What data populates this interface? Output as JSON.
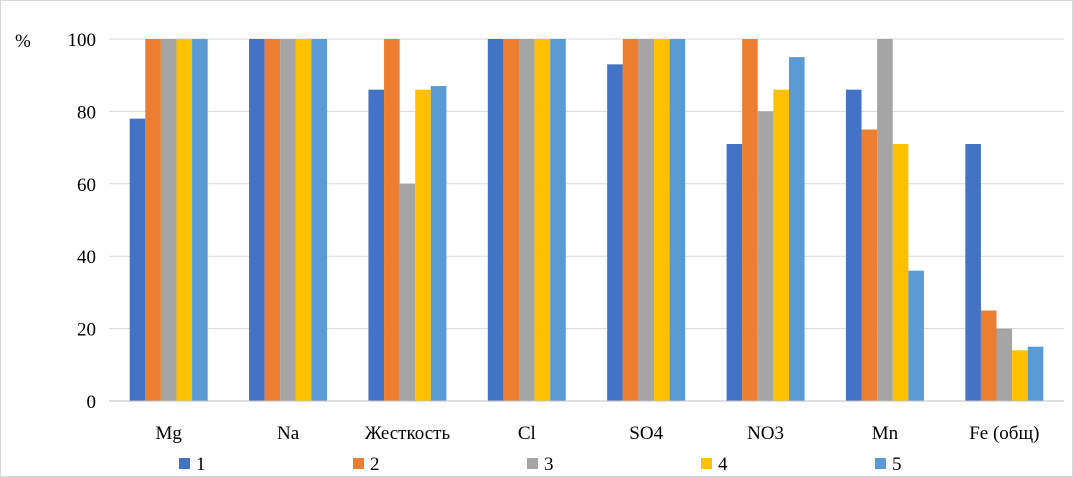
{
  "chart_data": {
    "type": "bar",
    "title": "",
    "ylabel": "%",
    "xlabel": "",
    "ylim": [
      0,
      100
    ],
    "yticks": [
      0,
      20,
      40,
      60,
      80,
      100
    ],
    "grid": true,
    "legend_position": "bottom",
    "categories": [
      "Mg",
      "Na",
      "Жесткость",
      "Cl",
      "SO4",
      "NO3",
      "Mn",
      "Fe (общ)"
    ],
    "series": [
      {
        "name": "1",
        "color": "#4472C4",
        "values": [
          78,
          100,
          86,
          100,
          93,
          71,
          86,
          71
        ]
      },
      {
        "name": "2",
        "color": "#ED7D31",
        "values": [
          100,
          100,
          100,
          100,
          100,
          100,
          75,
          25
        ]
      },
      {
        "name": "3",
        "color": "#A5A5A5",
        "values": [
          100,
          100,
          60,
          100,
          100,
          80,
          100,
          20
        ]
      },
      {
        "name": "4",
        "color": "#FFC000",
        "values": [
          100,
          100,
          86,
          100,
          100,
          86,
          71,
          14
        ]
      },
      {
        "name": "5",
        "color": "#5B9BD5",
        "values": [
          100,
          100,
          87,
          100,
          100,
          95,
          36,
          15
        ]
      }
    ],
    "colors": {
      "grid": "#d9d9d9",
      "axis": "#bfbfbf"
    }
  }
}
